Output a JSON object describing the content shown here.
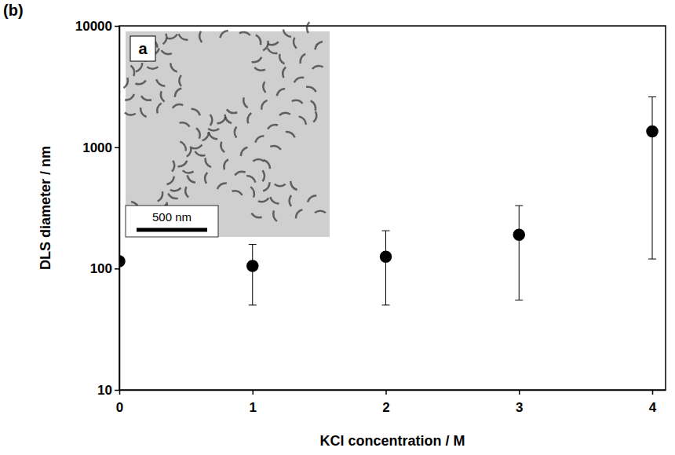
{
  "chart_data": {
    "type": "scatter",
    "panel_label": "(b)",
    "x_label": "KCl concentration / M",
    "y_label": "DLS diameter / nm",
    "x": [
      0,
      1,
      2,
      3,
      4
    ],
    "values": [
      115,
      105,
      125,
      190,
      1350
    ],
    "error_minus": [
      null,
      55,
      75,
      135,
      1230
    ],
    "error_plus": [
      null,
      53,
      80,
      140,
      1250
    ],
    "color": "#000000",
    "marker": "circle",
    "log": "y",
    "grid": false,
    "xlim": [
      0,
      4.1
    ],
    "ylim": [
      10,
      10000
    ],
    "xticks": [
      0,
      1,
      2,
      3,
      4
    ],
    "yticks": [
      10,
      100,
      1000,
      10000
    ],
    "inset": {
      "label": "a",
      "scale_bar": "500 nm"
    }
  }
}
